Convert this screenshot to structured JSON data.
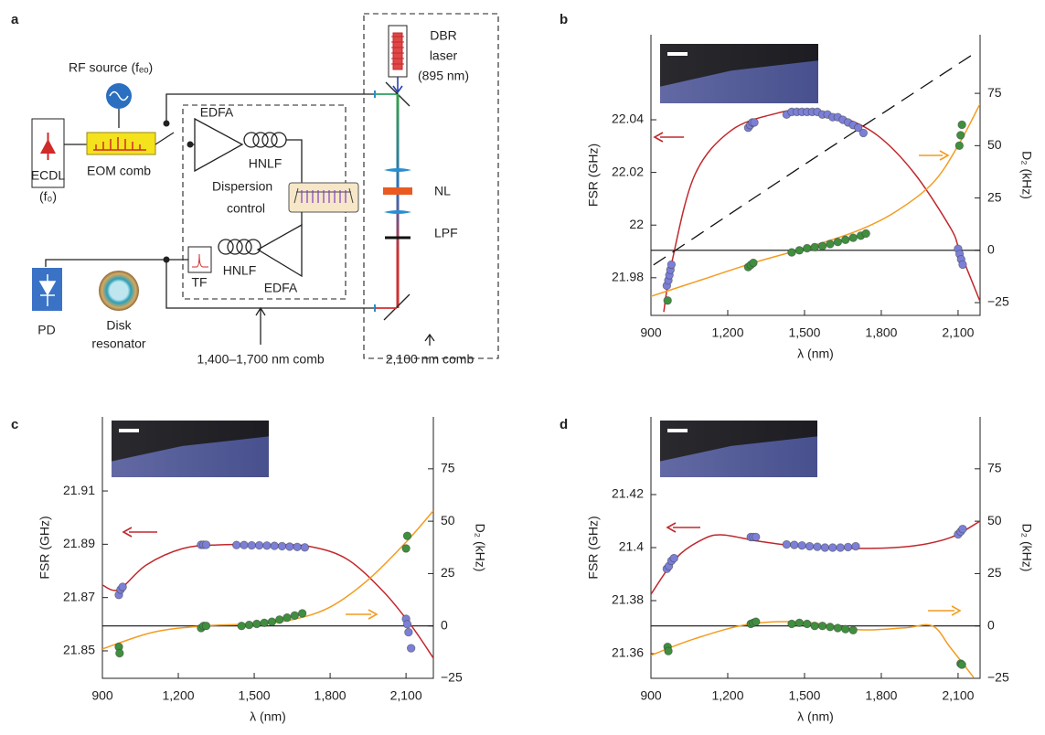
{
  "diagram": {
    "panel_label": "a",
    "rf_source": "RF source (fₑₒ)",
    "ecdl": [
      "ECDL",
      "(f₀)"
    ],
    "eom_comb": "EOM comb",
    "edfa_1": "EDFA",
    "hnlf_1": "HNLF",
    "dispersion_control": [
      "Dispersion",
      "control"
    ],
    "tf": "TF",
    "hnlf_2": "HNLF",
    "edfa_2": "EDFA",
    "pd": "PD",
    "disk_resonator": [
      "Disk",
      "resonator"
    ],
    "comb_1400_1700": "1,400–1,700 nm comb",
    "comb_2100": "2,100 nm comb",
    "dbr_laser": [
      "DBR",
      "laser",
      "(895 nm)"
    ],
    "nl": "NL",
    "lpf": "LPF"
  },
  "chart_data": [
    {
      "type": "line",
      "panel_label": "b",
      "xlabel": "λ (nm)",
      "ylabel": "FSR (GHz)",
      "y2label": "D₂ (kHz)",
      "xlim": [
        900,
        2186
      ],
      "xticks": [
        900,
        {
          "value": 1200,
          "label": "1,200"
        },
        {
          "value": 1500,
          "label": "1,500"
        },
        {
          "value": 1800,
          "label": "1,800"
        },
        {
          "value": 2100,
          "label": "2,100"
        }
      ],
      "ylim": [
        21.9657,
        22.0723
      ],
      "yticks": [
        21.98,
        22.0,
        22.02,
        22.04
      ],
      "y2lim": [
        -31.1,
        103
      ],
      "y2ticks": [
        {
          "value": -25,
          "label": "−25"
        },
        0,
        25,
        50,
        75
      ],
      "zero_line": true,
      "series": [
        {
          "type": "line",
          "color": "#c0282d",
          "x": [
            950,
            982,
            1071,
            1214,
            1393,
            1500,
            1643,
            1786,
            1929,
            2071,
            2107,
            2186
          ],
          "values": [
            21.967,
            21.986,
            22.019,
            22.036,
            22.0425,
            22.0435,
            22.041,
            22.034,
            22.0197,
            21.9988,
            21.99,
            21.971
          ]
        },
        {
          "type": "line",
          "axis": "y2",
          "color": "#f39c20",
          "x": [
            900,
            1100,
            1300,
            1500,
            1700,
            1850,
            2000,
            2100,
            2186
          ],
          "values": [
            -22,
            -14,
            -6,
            1,
            9,
            18,
            32,
            50,
            70
          ]
        },
        {
          "type": "line",
          "axis": "y2",
          "color": "#111111",
          "style": "dashed",
          "x": [
            910,
            1500,
            2150
          ],
          "values": [
            -7,
            41,
            93
          ]
        },
        {
          "type": "scatter",
          "color": "#7b7fd6",
          "x": [
            962,
            968,
            972,
            976,
            980,
            1280,
            1288,
            1296,
            1304,
            1430,
            1450,
            1470,
            1490,
            1510,
            1530,
            1550,
            1570,
            1590,
            1610,
            1630,
            1650,
            1670,
            1690,
            1710,
            1730,
            2100,
            2106,
            2112,
            2118
          ],
          "values": [
            21.977,
            21.979,
            21.981,
            21.983,
            21.985,
            22.037,
            22.038,
            22.039,
            22.039,
            22.042,
            22.043,
            22.043,
            22.043,
            22.043,
            22.043,
            22.043,
            22.042,
            22.042,
            22.041,
            22.041,
            22.04,
            22.039,
            22.038,
            22.037,
            22.035,
            21.991,
            21.989,
            21.987,
            21.985
          ]
        },
        {
          "type": "scatter",
          "axis": "y2",
          "color": "#3f8f3f",
          "x": [
            965,
            1280,
            1290,
            1300,
            1450,
            1480,
            1510,
            1540,
            1570,
            1600,
            1630,
            1660,
            1690,
            1720,
            1740,
            2105,
            2110,
            2115
          ],
          "values": [
            -24,
            -8,
            -7,
            -6,
            -1,
            0,
            1,
            1.5,
            2,
            3,
            4,
            5,
            6,
            7,
            8,
            50,
            55,
            60
          ]
        }
      ]
    },
    {
      "type": "line",
      "panel_label": "c",
      "xlabel": "λ (nm)",
      "ylabel": "FSR (GHz)",
      "y2label": "D₂ (kHz)",
      "xlim": [
        900,
        2208
      ],
      "xticks": [
        900,
        {
          "value": 1200,
          "label": "1,200"
        },
        {
          "value": 1500,
          "label": "1,500"
        },
        {
          "value": 1800,
          "label": "1,800"
        },
        {
          "value": 2100,
          "label": "2,100"
        }
      ],
      "ylim": [
        21.8397,
        21.9378
      ],
      "yticks": [
        21.85,
        21.87,
        21.89,
        21.91
      ],
      "y2lim": [
        -25,
        99.8
      ],
      "y2ticks": [
        {
          "value": -25,
          "label": "−25"
        },
        0,
        25,
        50,
        75
      ],
      "zero_line": true,
      "series": [
        {
          "type": "line",
          "color": "#c0282d",
          "x": [
            900,
            965,
            1073,
            1218,
            1363,
            1580,
            1724,
            1869,
            2013,
            2122,
            2208
          ],
          "values": [
            21.8747,
            21.873,
            21.8822,
            21.8884,
            21.8898,
            21.8898,
            21.8891,
            21.8843,
            21.872,
            21.8593,
            21.8473
          ]
        },
        {
          "type": "line",
          "axis": "y2",
          "color": "#f39c20",
          "x": [
            900,
            1100,
            1300,
            1500,
            1650,
            1800,
            1950,
            2100,
            2208
          ],
          "values": [
            -11,
            -3,
            0,
            1,
            3,
            9,
            22,
            40,
            55
          ]
        },
        {
          "type": "scatter",
          "color": "#7b7fd6",
          "x": [
            965,
            972,
            980,
            1290,
            1300,
            1310,
            1430,
            1460,
            1490,
            1520,
            1550,
            1580,
            1610,
            1640,
            1670,
            1700,
            2100,
            2105,
            2110,
            2120
          ],
          "values": [
            21.871,
            21.873,
            21.874,
            21.8898,
            21.8898,
            21.8898,
            21.8897,
            21.8897,
            21.8896,
            21.8896,
            21.8895,
            21.8894,
            21.8893,
            21.8891,
            21.889,
            21.8888,
            21.862,
            21.86,
            21.857,
            21.851
          ]
        },
        {
          "type": "scatter",
          "axis": "y2",
          "color": "#3f8f3f",
          "x": [
            965,
            968,
            1290,
            1300,
            1310,
            1450,
            1480,
            1510,
            1540,
            1570,
            1600,
            1630,
            1660,
            1690,
            2100,
            2105
          ],
          "values": [
            -10,
            -13,
            -1,
            0,
            0,
            0,
            0.5,
            1,
            1.5,
            2,
            3,
            4,
            5,
            6,
            37,
            43
          ]
        }
      ]
    },
    {
      "type": "line",
      "panel_label": "d",
      "xlabel": "λ (nm)",
      "ylabel": "FSR (GHz)",
      "y2label": "D₂ (kHz)",
      "xlim": [
        900,
        2186
      ],
      "xticks": [
        900,
        {
          "value": 1200,
          "label": "1,200"
        },
        {
          "value": 1500,
          "label": "1,500"
        },
        {
          "value": 1800,
          "label": "1,800"
        },
        {
          "value": 2100,
          "label": "2,100"
        }
      ],
      "ylim": [
        21.3507,
        21.4493
      ],
      "yticks": [
        21.36,
        21.38,
        21.4,
        21.42
      ],
      "y2lim": [
        -25,
        99.8
      ],
      "y2ticks": [
        {
          "value": -25,
          "label": "−25"
        },
        0,
        25,
        50,
        75
      ],
      "zero_line": true,
      "series": [
        {
          "type": "line",
          "color": "#c0282d",
          "x": [
            900,
            1000,
            1100,
            1179,
            1321,
            1500,
            1750,
            1929,
            2071,
            2186
          ],
          "values": [
            21.3824,
            21.3962,
            21.403,
            21.4048,
            21.4024,
            21.4003,
            21.3997,
            21.4007,
            21.4038,
            21.41
          ]
        },
        {
          "type": "line",
          "axis": "y2",
          "color": "#f39c20",
          "x": [
            900,
            1071,
            1286,
            1500,
            1714,
            1893,
            2000,
            2071,
            2161
          ],
          "values": [
            -14,
            -6.1,
            0.9,
            1.8,
            -1.8,
            -0.9,
            0,
            -10.5,
            -24.6
          ]
        },
        {
          "type": "scatter",
          "color": "#7b7fd6",
          "x": [
            962,
            970,
            980,
            990,
            1290,
            1300,
            1310,
            1430,
            1460,
            1490,
            1520,
            1550,
            1580,
            1610,
            1640,
            1670,
            1700,
            2100,
            2110,
            2118
          ],
          "values": [
            21.392,
            21.393,
            21.395,
            21.396,
            21.404,
            21.404,
            21.404,
            21.4012,
            21.401,
            21.4008,
            21.4005,
            21.4003,
            21.4,
            21.4,
            21.4,
            21.4002,
            21.4005,
            21.405,
            21.406,
            21.407
          ]
        },
        {
          "type": "scatter",
          "axis": "y2",
          "color": "#3f8f3f",
          "x": [
            965,
            968,
            1290,
            1300,
            1310,
            1450,
            1480,
            1510,
            1540,
            1570,
            1600,
            1630,
            1660,
            1690,
            2110,
            2115
          ],
          "values": [
            -10,
            -12,
            1,
            1.5,
            2,
            1,
            1.5,
            1,
            0,
            0,
            -0.5,
            -1,
            -1.5,
            -2,
            -18,
            -18.5
          ]
        }
      ]
    }
  ]
}
